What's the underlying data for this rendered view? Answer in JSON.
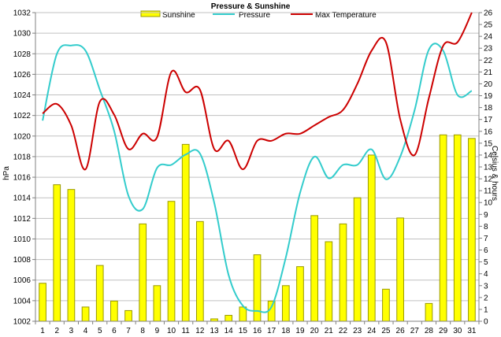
{
  "chart_data": {
    "type": "bar+line",
    "title": "Pressure & Sunshine",
    "y_left_label": "hPa",
    "y_right_label": "Celsius & hours",
    "y_left_range": [
      1002,
      1032
    ],
    "y_left_ticks": [
      1002,
      1004,
      1006,
      1008,
      1010,
      1012,
      1014,
      1016,
      1018,
      1020,
      1022,
      1024,
      1026,
      1028,
      1030,
      1032
    ],
    "y_right_range": [
      0,
      26
    ],
    "y_right_ticks": [
      0,
      1,
      2,
      3,
      4,
      5,
      6,
      7,
      8,
      9,
      10,
      11,
      12,
      13,
      14,
      15,
      16,
      17,
      18,
      19,
      20,
      21,
      22,
      23,
      24,
      25,
      26
    ],
    "categories": [
      "1",
      "2",
      "3",
      "4",
      "5",
      "6",
      "7",
      "8",
      "9",
      "10",
      "11",
      "12",
      "13",
      "14",
      "15",
      "16",
      "17",
      "18",
      "19",
      "20",
      "21",
      "22",
      "23",
      "24",
      "25",
      "26",
      "27",
      "28",
      "29",
      "30",
      "31"
    ],
    "grid": "horizontal, major left ticks",
    "legend_position": "top",
    "series": [
      {
        "name": "Sunshine",
        "kind": "bar",
        "axis": "right",
        "color": "#ffff00",
        "values": [
          3.2,
          11.5,
          11.1,
          1.2,
          4.7,
          1.7,
          0.9,
          8.2,
          3.0,
          10.1,
          14.9,
          8.4,
          0.2,
          0.5,
          1.2,
          5.6,
          1.7,
          3.0,
          4.6,
          8.9,
          6.7,
          8.2,
          10.4,
          14.0,
          2.7,
          8.7,
          0,
          1.5,
          15.7,
          15.7,
          15.4
        ]
      },
      {
        "name": "Pressure",
        "kind": "line",
        "axis": "left",
        "color": "#33cccc",
        "values": [
          1021.5,
          1028.0,
          1028.8,
          1028.3,
          1024.5,
          1020.5,
          1014.2,
          1012.9,
          1016.9,
          1017.2,
          1018.2,
          1018.3,
          1013.5,
          1006.5,
          1003.5,
          1003.0,
          1003.4,
          1008.2,
          1014.5,
          1018.0,
          1015.9,
          1017.2,
          1017.2,
          1018.7,
          1015.8,
          1018.0,
          1022.5,
          1028.4,
          1028.3,
          1024.0,
          1024.4
        ]
      },
      {
        "name": "Max Temperature",
        "kind": "line",
        "axis": "right",
        "color": "#cc0000",
        "values": [
          17.5,
          18.3,
          16.5,
          12.8,
          18.5,
          17.4,
          14.5,
          15.8,
          15.5,
          21.0,
          19.3,
          19.5,
          14.5,
          15.2,
          12.8,
          15.2,
          15.2,
          15.8,
          15.8,
          16.5,
          17.2,
          17.8,
          20.0,
          22.8,
          23.5,
          17.0,
          14.0,
          18.8,
          23.2,
          23.5,
          26.0
        ]
      }
    ]
  },
  "colors": {
    "sunshine_fill": "#ffff00",
    "sunshine_stroke": "#999900",
    "pressure": "#33cccc",
    "temperature": "#cc0000",
    "grid": "#c0c0c0",
    "axis": "#808080"
  }
}
